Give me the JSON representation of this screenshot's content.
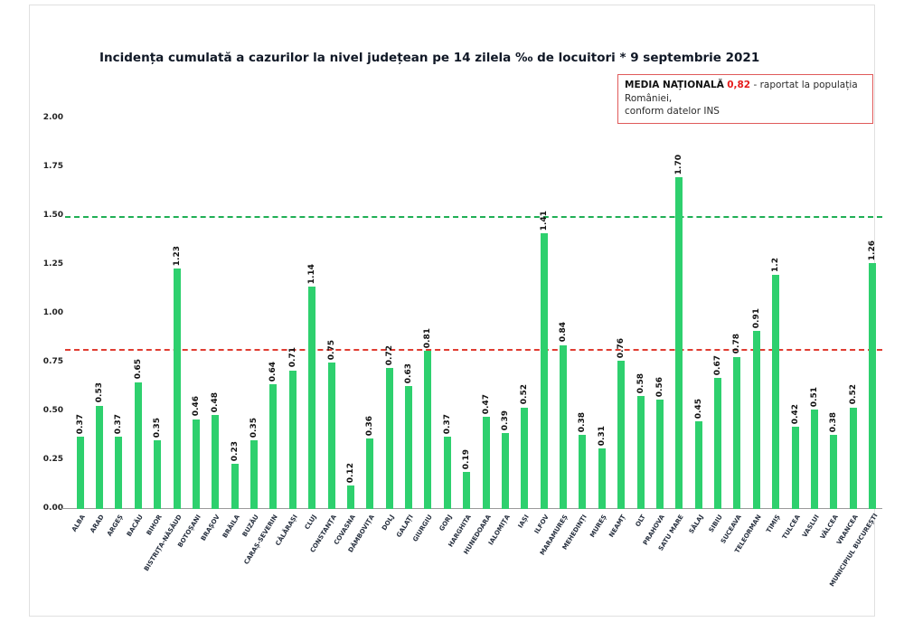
{
  "legend": {
    "label": "MEDIA NAȚIONALĂ",
    "value": "0,82",
    "suffix": "- raportat la populația României,",
    "line2": "conform datelor INS"
  },
  "colors": {
    "bar": "#2ed06e",
    "green_line": "#1faf54",
    "red_line": "#e03c31",
    "legend_border": "#e05a5a",
    "legend_value": "#e51c1c"
  },
  "chart_data": {
    "type": "bar",
    "title": "Incidența cumulată a cazurilor la nivel județean pe 14 zilela ‰ de locuitori * 9 septembrie 2021",
    "xlabel": "",
    "ylabel": "",
    "ylim": [
      0,
      2.0
    ],
    "ytick_labels": [
      "2.00",
      "1.75",
      "1.50",
      "1.25",
      "1.00",
      "0.75",
      "0.50",
      "0.25",
      "0.00"
    ],
    "grid": false,
    "national_average_line": 0.82,
    "upper_threshold_line": 1.5,
    "categories": [
      "ALBA",
      "ARAD",
      "ARGEȘ",
      "BACĂU",
      "BIHOR",
      "BISTRIȚA-NĂSĂUD",
      "BOTOȘANI",
      "BRAȘOV",
      "BRĂILA",
      "BUZĂU",
      "CARAȘ-SEVERIN",
      "CĂLĂRAȘI",
      "CLUJ",
      "CONSTANȚA",
      "COVASNA",
      "DÂMBOVIȚA",
      "DOLJ",
      "GALAȚI",
      "GIURGIU",
      "GORJ",
      "HARGHITA",
      "HUNEDOARA",
      "IALOMIȚA",
      "IAȘI",
      "ILFOV",
      "MARAMUREȘ",
      "MEHEDINȚI",
      "MUREȘ",
      "NEAMȚ",
      "OLT",
      "PRAHOVA",
      "SATU MARE",
      "SĂLAJ",
      "SIBIU",
      "SUCEAVA",
      "TELEORMAN",
      "TIMIȘ",
      "TULCEA",
      "VASLUI",
      "VÂLCEA",
      "VRANCEA",
      "MUNICIPIUL BUCUREȘTI"
    ],
    "values": [
      0.37,
      0.53,
      0.37,
      0.65,
      0.35,
      1.23,
      0.46,
      0.48,
      0.23,
      0.35,
      0.64,
      0.71,
      1.14,
      0.75,
      0.12,
      0.36,
      0.72,
      0.63,
      0.81,
      0.37,
      0.19,
      0.47,
      0.39,
      0.52,
      1.41,
      0.84,
      0.38,
      0.31,
      0.76,
      0.58,
      0.56,
      1.7,
      0.45,
      0.67,
      0.78,
      0.91,
      1.2,
      0.42,
      0.51,
      0.38,
      0.52,
      1.26
    ],
    "value_labels": [
      "0.37",
      "0.53",
      "0.37",
      "0.65",
      "0.35",
      "1.23",
      "0.46",
      "0.48",
      "0.23",
      "0.35",
      "0.64",
      "0.71",
      "1.14",
      "0.75",
      "0.12",
      "0.36",
      "0.72",
      "0.63",
      "0.81",
      "0.37",
      "0.19",
      "0.47",
      "0.39",
      "0.52",
      "1.41",
      "0.84",
      "0.38",
      "0.31",
      "0.76",
      "0.58",
      "0.56",
      "1.70",
      "0.45",
      "0.67",
      "0.78",
      "0.91",
      "1.2",
      "0.42",
      "0.51",
      "0.38",
      "0.52",
      "1.26"
    ]
  }
}
